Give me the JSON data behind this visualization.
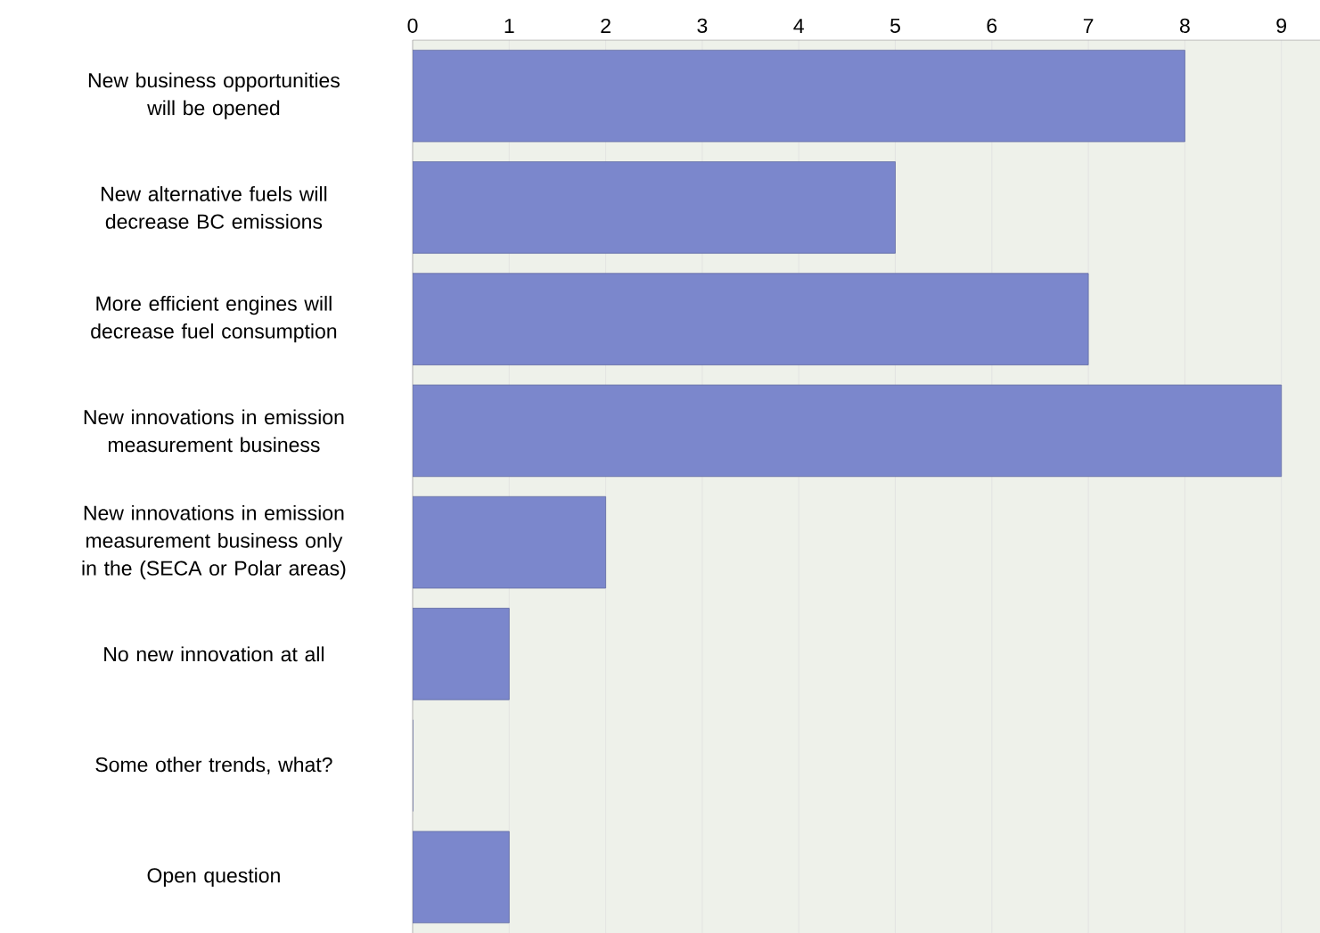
{
  "chart_data": {
    "type": "bar",
    "orientation": "horizontal",
    "categories": [
      "New business opportunities will be opened",
      "New alternative fuels will decrease BC emissions",
      "More efficient engines will decrease fuel consumption",
      "New innovations in emission measurement business",
      "New innovations in emission measurement business only in the (SECA or Polar areas)",
      "No new innovation at all",
      "Some other trends, what?",
      "Open question"
    ],
    "values": [
      8,
      5,
      7,
      9,
      2,
      1,
      0,
      1
    ],
    "color": "#7b87cc",
    "xlim": [
      0,
      9.4
    ],
    "xticks": [
      0,
      1,
      2,
      3,
      4,
      5,
      6,
      7,
      8,
      9
    ],
    "grid": "x"
  }
}
